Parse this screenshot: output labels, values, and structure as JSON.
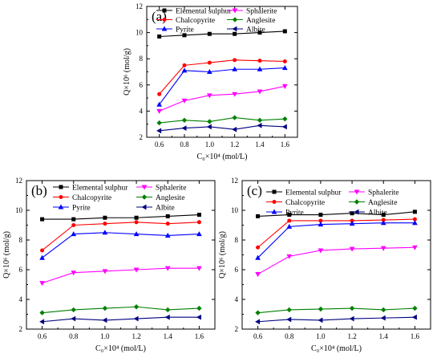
{
  "chart_data": [
    {
      "panel_label": "(a)",
      "type": "line",
      "x": [
        0.6,
        0.8,
        1.0,
        1.2,
        1.4,
        1.6
      ],
      "xlim": [
        0.5,
        1.7
      ],
      "ylim": [
        2,
        12
      ],
      "xticks": [
        "0.6",
        "0.8",
        "1.0",
        "1.2",
        "1.4",
        "1.6"
      ],
      "yticks": [
        "2",
        "4",
        "6",
        "8",
        "10",
        "12"
      ],
      "xlabel": "C₀×10⁴ (mol/L)",
      "ylabel": "Q×10⁶ (mol/g)",
      "legend_position": "top",
      "series": [
        {
          "name": "Elemental sulphur",
          "color": "#000000",
          "marker": "square",
          "values": [
            9.7,
            9.8,
            9.9,
            9.9,
            10.0,
            10.1
          ]
        },
        {
          "name": "Chalcopyrite",
          "color": "#ff0000",
          "marker": "circle",
          "values": [
            5.3,
            7.5,
            7.7,
            7.9,
            7.85,
            7.8
          ]
        },
        {
          "name": "Pyrite",
          "color": "#0000ff",
          "marker": "triangle",
          "values": [
            4.5,
            7.1,
            7.0,
            7.2,
            7.2,
            7.3
          ]
        },
        {
          "name": "Sphalerite",
          "color": "#ff00ff",
          "marker": "triangle-down",
          "values": [
            4.0,
            4.8,
            5.2,
            5.3,
            5.5,
            5.9
          ]
        },
        {
          "name": "Anglesite",
          "color": "#008000",
          "marker": "diamond",
          "values": [
            3.1,
            3.3,
            3.2,
            3.5,
            3.3,
            3.4
          ]
        },
        {
          "name": "Albite",
          "color": "#000080",
          "marker": "triangle-left",
          "values": [
            2.5,
            2.7,
            2.8,
            2.6,
            2.9,
            2.8
          ]
        }
      ]
    },
    {
      "panel_label": "(b)",
      "type": "line",
      "x": [
        0.6,
        0.8,
        1.0,
        1.2,
        1.4,
        1.6
      ],
      "xlim": [
        0.5,
        1.7
      ],
      "ylim": [
        2,
        12
      ],
      "xticks": [
        "0.6",
        "0.8",
        "1.0",
        "1.2",
        "1.4",
        "1.6"
      ],
      "yticks": [
        "2",
        "4",
        "6",
        "8",
        "10",
        "12"
      ],
      "xlabel": "C₀×10⁴ (mol/L)",
      "ylabel": "Q×10⁶ (mol/g)",
      "legend_position": "top",
      "series": [
        {
          "name": "Elemental sulphur",
          "color": "#000000",
          "marker": "square",
          "values": [
            9.4,
            9.4,
            9.5,
            9.5,
            9.6,
            9.7
          ]
        },
        {
          "name": "Chalcopyrite",
          "color": "#ff0000",
          "marker": "circle",
          "values": [
            7.3,
            9.0,
            9.1,
            9.2,
            9.1,
            9.2
          ]
        },
        {
          "name": "Pyrite",
          "color": "#0000ff",
          "marker": "triangle",
          "values": [
            6.8,
            8.4,
            8.5,
            8.4,
            8.3,
            8.4
          ]
        },
        {
          "name": "Sphalerite",
          "color": "#ff00ff",
          "marker": "triangle-down",
          "values": [
            5.1,
            5.8,
            5.9,
            6.0,
            6.1,
            6.1
          ]
        },
        {
          "name": "Anglesite",
          "color": "#008000",
          "marker": "diamond",
          "values": [
            3.1,
            3.3,
            3.4,
            3.5,
            3.3,
            3.4
          ]
        },
        {
          "name": "Albite",
          "color": "#000080",
          "marker": "triangle-left",
          "values": [
            2.5,
            2.7,
            2.6,
            2.7,
            2.8,
            2.8
          ]
        }
      ]
    },
    {
      "panel_label": "(c)",
      "type": "line",
      "x": [
        0.6,
        0.8,
        1.0,
        1.2,
        1.4,
        1.6
      ],
      "xlim": [
        0.5,
        1.7
      ],
      "ylim": [
        2,
        12
      ],
      "xticks": [
        "0.6",
        "0.8",
        "1.0",
        "1.2",
        "1.4",
        "1.6"
      ],
      "yticks": [
        "2",
        "4",
        "6",
        "8",
        "10",
        "12"
      ],
      "xlabel": "C₀×10⁴ (mol/L)",
      "ylabel": "Q×10⁶ (mol/g)",
      "legend_position": "top",
      "series": [
        {
          "name": "Elemental sulphur",
          "color": "#000000",
          "marker": "square",
          "values": [
            9.6,
            9.7,
            9.7,
            9.8,
            9.7,
            9.9
          ]
        },
        {
          "name": "Chalcopyrite",
          "color": "#ff0000",
          "marker": "circle",
          "values": [
            7.5,
            9.3,
            9.3,
            9.3,
            9.35,
            9.4
          ]
        },
        {
          "name": "Pyrite",
          "color": "#0000ff",
          "marker": "triangle",
          "values": [
            6.8,
            8.9,
            9.05,
            9.1,
            9.15,
            9.15
          ]
        },
        {
          "name": "Sphalerite",
          "color": "#ff00ff",
          "marker": "triangle-down",
          "values": [
            5.7,
            6.9,
            7.3,
            7.4,
            7.45,
            7.5
          ]
        },
        {
          "name": "Anglesite",
          "color": "#008000",
          "marker": "diamond",
          "values": [
            3.1,
            3.3,
            3.35,
            3.4,
            3.3,
            3.4
          ]
        },
        {
          "name": "Albite",
          "color": "#000080",
          "marker": "triangle-left",
          "values": [
            2.5,
            2.65,
            2.6,
            2.7,
            2.75,
            2.8
          ]
        }
      ]
    }
  ]
}
